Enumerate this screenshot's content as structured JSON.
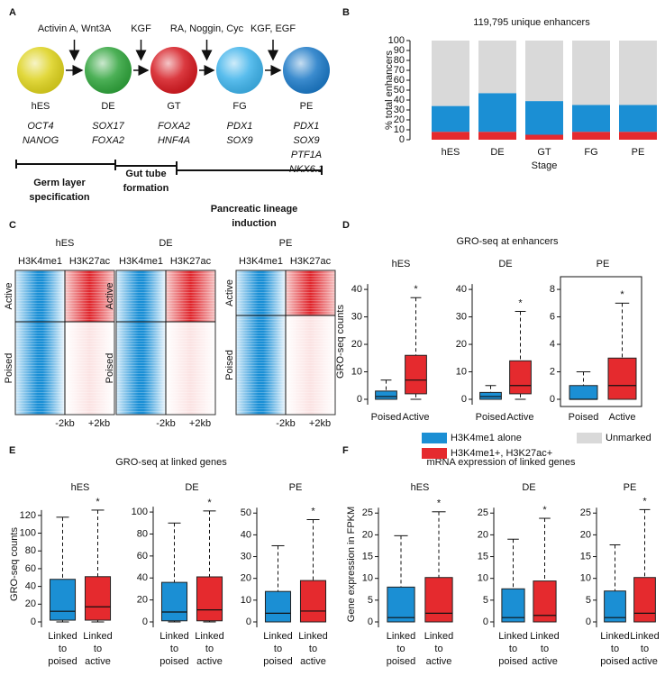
{
  "panel_labels": [
    "A",
    "B",
    "C",
    "D",
    "E",
    "F"
  ],
  "diagram": {
    "stages": [
      {
        "name": "hES",
        "markers": [
          "OCT4",
          "NANOG"
        ],
        "color": "#ddd21c"
      },
      {
        "name": "DE",
        "markers": [
          "SOX17",
          "FOXA2"
        ],
        "color": "#2ea33a"
      },
      {
        "name": "GT",
        "markers": [
          "FOXA2",
          "HNF4A"
        ],
        "color": "#d5181f"
      },
      {
        "name": "FG",
        "markers": [
          "PDX1",
          "SOX9"
        ],
        "color": "#3db2ea"
      },
      {
        "name": "PE",
        "markers": [
          "PDX1",
          "SOX9",
          "PTF1A",
          "NKX6.1"
        ],
        "color": "#1a78c6"
      }
    ],
    "factors": [
      "Activin A, Wnt3A",
      "KGF",
      "RA, Noggin, Cyc",
      "KGF, EGF"
    ],
    "phases": [
      [
        "Germ layer",
        "specification"
      ],
      [
        "Gut tube",
        "formation"
      ],
      [
        "Pancreatic lineage",
        "induction"
      ]
    ]
  },
  "heatmaps": {
    "stages": [
      "hES",
      "DE",
      "PE"
    ],
    "marks": [
      {
        "name": "H3K4me1",
        "color": "#1a8fd6"
      },
      {
        "name": "H3K27ac",
        "color": "#e0242b"
      }
    ],
    "rows": [
      "Active",
      "Poised"
    ],
    "x_labels": [
      "-2kb",
      "+2kb"
    ]
  },
  "panel_titles": [
    "GRO-seq at enhancers",
    "GRO-seq at linked genes",
    "mRNA expression of linked genes"
  ],
  "chart_data": [
    {
      "type": "bar",
      "stacked": true,
      "title": "119,795 unique enhancers",
      "y_label": "% total enhancers",
      "x_label": "Stage",
      "categories": [
        "hES",
        "DE",
        "GT",
        "FG",
        "PE"
      ],
      "series": [
        {
          "name": "H3K4me1+, H3K27ac+",
          "color": "#e52a2e",
          "values": [
            8,
            8,
            5,
            8,
            8
          ]
        },
        {
          "name": "H3K4me1 alone",
          "color": "#1b8fd4",
          "values": [
            26,
            39,
            34,
            27,
            27
          ]
        },
        {
          "name": "Unmarked",
          "color": "#d9d9d9",
          "values": [
            66,
            53,
            61,
            65,
            65
          ]
        }
      ],
      "ylim": [
        0,
        100
      ],
      "yticks": [
        0,
        10,
        20,
        30,
        40,
        50,
        60,
        70,
        80,
        90,
        100
      ]
    },
    {
      "type": "box",
      "title": "hES",
      "y_label": "GRO-seq counts",
      "categories": [
        "Poised",
        "Active"
      ],
      "colors": [
        "#1b8fd4",
        "#e52a2e"
      ],
      "annotation": "*",
      "ylim": [
        0,
        42
      ],
      "yticks": [
        0,
        10,
        20,
        30,
        40
      ],
      "boxes": [
        {
          "low": 0,
          "q1": 0,
          "median": 1,
          "q3": 3,
          "high": 7
        },
        {
          "low": 0,
          "q1": 2,
          "median": 7,
          "q3": 16,
          "high": 37
        }
      ]
    },
    {
      "type": "box",
      "title": "DE",
      "categories": [
        "Poised",
        "Active"
      ],
      "colors": [
        "#1b8fd4",
        "#e52a2e"
      ],
      "annotation": "*",
      "ylim": [
        0,
        42
      ],
      "yticks": [
        0,
        10,
        20,
        30,
        40
      ],
      "boxes": [
        {
          "low": 0,
          "q1": 0,
          "median": 1,
          "q3": 2.5,
          "high": 5
        },
        {
          "low": 0,
          "q1": 2,
          "median": 5,
          "q3": 14,
          "high": 32
        }
      ]
    },
    {
      "type": "box",
      "title": "PE",
      "categories": [
        "Poised",
        "Active"
      ],
      "colors": [
        "#1b8fd4",
        "#e52a2e"
      ],
      "annotation": "*",
      "ylim": [
        0,
        8.4
      ],
      "yticks": [
        0,
        2,
        4,
        6,
        8
      ],
      "boxes": [
        {
          "low": 0,
          "q1": 0,
          "median": 0,
          "q3": 1,
          "high": 2
        },
        {
          "low": 0,
          "q1": 0,
          "median": 1,
          "q3": 3,
          "high": 7
        }
      ]
    },
    {
      "type": "box",
      "title": "hES",
      "y_label": "GRO-seq counts",
      "categories": [
        [
          "Linked",
          "to",
          "poised"
        ],
        [
          "Linked",
          "to",
          "active"
        ]
      ],
      "colors": [
        "#1b8fd4",
        "#e52a2e"
      ],
      "annotation": "*",
      "ylim": [
        0,
        130
      ],
      "yticks": [
        0,
        20,
        40,
        60,
        80,
        100,
        120
      ],
      "boxes": [
        {
          "low": 0,
          "q1": 2,
          "median": 12,
          "q3": 48,
          "high": 118
        },
        {
          "low": 0,
          "q1": 2,
          "median": 17,
          "q3": 51,
          "high": 126
        }
      ]
    },
    {
      "type": "box",
      "title": "DE",
      "categories": [
        [
          "Linked",
          "to",
          "poised"
        ],
        [
          "Linked",
          "to",
          "active"
        ]
      ],
      "colors": [
        "#1b8fd4",
        "#e52a2e"
      ],
      "annotation": "*",
      "ylim": [
        0,
        105
      ],
      "yticks": [
        0,
        20,
        40,
        60,
        80,
        100
      ],
      "boxes": [
        {
          "low": 0,
          "q1": 1,
          "median": 9,
          "q3": 36,
          "high": 90
        },
        {
          "low": 0,
          "q1": 1,
          "median": 11,
          "q3": 41,
          "high": 101
        }
      ]
    },
    {
      "type": "box",
      "title": "PE",
      "categories": [
        [
          "Linked",
          "to",
          "poised"
        ],
        [
          "Linked",
          "to",
          "active"
        ]
      ],
      "colors": [
        "#1b8fd4",
        "#e52a2e"
      ],
      "annotation": "*",
      "ylim": [
        0,
        53
      ],
      "yticks": [
        0,
        10,
        20,
        30,
        40,
        50
      ],
      "boxes": [
        {
          "low": 0,
          "q1": 0,
          "median": 4,
          "q3": 14,
          "high": 35
        },
        {
          "low": 0,
          "q1": 0,
          "median": 5,
          "q3": 19,
          "high": 47
        }
      ]
    },
    {
      "type": "box",
      "title": "hES",
      "y_label": "Gene expression in FPKM",
      "categories": [
        [
          "Linked",
          "to",
          "poised"
        ],
        [
          "Linked",
          "to",
          "active"
        ]
      ],
      "colors": [
        "#1b8fd4",
        "#e52a2e"
      ],
      "annotation": "*",
      "ylim": [
        0,
        26.5
      ],
      "yticks": [
        0,
        5,
        10,
        15,
        20,
        25
      ],
      "boxes": [
        {
          "low": 0,
          "q1": 0,
          "median": 1,
          "q3": 8,
          "high": 19.8
        },
        {
          "low": 0,
          "q1": 0,
          "median": 2,
          "q3": 10.2,
          "high": 25.3
        }
      ]
    },
    {
      "type": "box",
      "title": "DE",
      "categories": [
        [
          "Linked",
          "to",
          "poised"
        ],
        [
          "Linked",
          "to",
          "active"
        ]
      ],
      "colors": [
        "#1b8fd4",
        "#e52a2e"
      ],
      "annotation": "*",
      "ylim": [
        0,
        26.5
      ],
      "yticks": [
        0,
        5,
        10,
        15,
        20,
        25
      ],
      "boxes": [
        {
          "low": 0,
          "q1": 0,
          "median": 1,
          "q3": 7.6,
          "high": 19
        },
        {
          "low": 0,
          "q1": 0,
          "median": 1.5,
          "q3": 9.4,
          "high": 23.8
        }
      ]
    },
    {
      "type": "box",
      "title": "PE",
      "categories": [
        [
          "Linked",
          "to",
          "poised"
        ],
        [
          "Linked",
          "to",
          "active"
        ]
      ],
      "colors": [
        "#1b8fd4",
        "#e52a2e"
      ],
      "annotation": "*",
      "ylim": [
        0,
        26.5
      ],
      "yticks": [
        0,
        5,
        10,
        15,
        20,
        25
      ],
      "boxes": [
        {
          "low": 0,
          "q1": 0,
          "median": 1,
          "q3": 7.1,
          "high": 17.7
        },
        {
          "low": 0,
          "q1": 0,
          "median": 2,
          "q3": 10.2,
          "high": 25.8
        }
      ]
    }
  ]
}
